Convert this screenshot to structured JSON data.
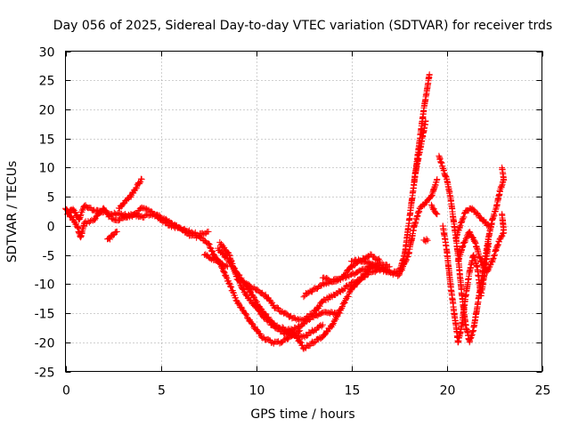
{
  "chart_data": {
    "type": "scatter",
    "title": "Day 056 of 2025, Sidereal Day-to-day VTEC variation (SDTVAR) for receiver trds",
    "xlabel": "GPS time / hours",
    "ylabel": "SDTVAR / TECUs",
    "xlim": [
      0,
      25
    ],
    "ylim": [
      -25,
      30
    ],
    "xticks": [
      0,
      5,
      10,
      15,
      20,
      25
    ],
    "yticks": [
      -25,
      -20,
      -15,
      -10,
      -5,
      0,
      5,
      10,
      15,
      20,
      25,
      30
    ],
    "grid": true,
    "marker": "+",
    "series": [
      {
        "name": "SDTVAR",
        "color": "#ff0000",
        "strands": [
          [
            [
              0,
              3
            ],
            [
              0.3,
              1.5
            ],
            [
              0.6,
              0
            ],
            [
              0.8,
              -2
            ],
            [
              1.0,
              0.5
            ],
            [
              1.5,
              1
            ],
            [
              2.0,
              3
            ],
            [
              2.3,
              1.5
            ],
            [
              2.8,
              1
            ],
            [
              3.2,
              1.5
            ],
            [
              3.6,
              2
            ],
            [
              4.0,
              1.5
            ],
            [
              4.5,
              2
            ],
            [
              5.0,
              1.5
            ],
            [
              5.5,
              0.5
            ],
            [
              6.0,
              -0.5
            ],
            [
              6.5,
              -1.5
            ],
            [
              7.0,
              -2
            ],
            [
              7.5,
              -3
            ],
            [
              7.8,
              -5
            ],
            [
              8.2,
              -7
            ],
            [
              8.6,
              -10
            ],
            [
              9.0,
              -13
            ],
            [
              9.4,
              -15
            ],
            [
              9.8,
              -17
            ],
            [
              10.3,
              -19
            ],
            [
              10.8,
              -20
            ],
            [
              11.3,
              -20
            ],
            [
              11.8,
              -19
            ],
            [
              12.3,
              -18
            ]
          ],
          [
            [
              0.1,
              2
            ],
            [
              0.4,
              3
            ],
            [
              0.7,
              1
            ],
            [
              1.0,
              3.5
            ],
            [
              1.5,
              2.5
            ],
            [
              2.0,
              2.5
            ],
            [
              2.5,
              2
            ],
            [
              3.0,
              2
            ],
            [
              3.5,
              1.5
            ],
            [
              4.0,
              3
            ],
            [
              4.5,
              2.5
            ],
            [
              5.0,
              1
            ],
            [
              5.5,
              0
            ],
            [
              6.0,
              -0.5
            ],
            [
              6.5,
              -1
            ],
            [
              7.0,
              -1.5
            ],
            [
              7.5,
              -1
            ]
          ],
          [
            [
              2.8,
              3
            ],
            [
              3.1,
              4
            ],
            [
              3.4,
              5
            ],
            [
              3.7,
              6.5
            ],
            [
              4.0,
              8
            ]
          ],
          [
            [
              2.2,
              -2.5
            ],
            [
              2.7,
              -1
            ]
          ],
          [
            [
              7.3,
              -5
            ],
            [
              7.6,
              -5.5
            ],
            [
              8.0,
              -6
            ],
            [
              8.5,
              -7
            ]
          ],
          [
            [
              8.0,
              -4
            ],
            [
              8.6,
              -6
            ],
            [
              9.2,
              -9
            ],
            [
              9.8,
              -12
            ],
            [
              10.4,
              -15
            ],
            [
              11.0,
              -17
            ],
            [
              11.6,
              -18
            ],
            [
              12.2,
              -17.5
            ],
            [
              12.8,
              -16
            ],
            [
              13.4,
              -15
            ],
            [
              14.0,
              -15
            ],
            [
              14.4,
              -15
            ]
          ],
          [
            [
              8.1,
              -3
            ],
            [
              8.6,
              -5
            ],
            [
              9.0,
              -9
            ],
            [
              9.5,
              -12
            ],
            [
              10.0,
              -14
            ],
            [
              10.5,
              -16
            ],
            [
              11.0,
              -17.5
            ],
            [
              11.5,
              -18.5
            ],
            [
              12.0,
              -19
            ],
            [
              12.5,
              -19
            ],
            [
              13.0,
              -18
            ],
            [
              13.5,
              -17
            ]
          ],
          [
            [
              9.5,
              -10
            ],
            [
              10.0,
              -11
            ],
            [
              10.5,
              -12
            ],
            [
              11.0,
              -14
            ],
            [
              11.5,
              -15
            ],
            [
              12.0,
              -16
            ],
            [
              12.5,
              -16
            ],
            [
              13.0,
              -15
            ],
            [
              13.5,
              -13
            ],
            [
              14.0,
              -12
            ],
            [
              14.5,
              -11
            ],
            [
              15.0,
              -10
            ],
            [
              15.5,
              -9
            ],
            [
              16.0,
              -8
            ],
            [
              16.5,
              -7.5
            ]
          ],
          [
            [
              11.5,
              -18
            ],
            [
              12.0,
              -18.5
            ],
            [
              12.5,
              -21
            ],
            [
              13.0,
              -20
            ],
            [
              13.5,
              -19
            ],
            [
              14.0,
              -17
            ],
            [
              14.5,
              -14
            ],
            [
              15.0,
              -11
            ],
            [
              15.5,
              -9
            ],
            [
              16.0,
              -7
            ],
            [
              16.5,
              -6.5
            ],
            [
              17.0,
              -7
            ]
          ],
          [
            [
              12.5,
              -12
            ],
            [
              13.0,
              -11
            ],
            [
              13.5,
              -10
            ],
            [
              14.0,
              -9.5
            ],
            [
              14.5,
              -9
            ],
            [
              15.0,
              -8.5
            ],
            [
              15.5,
              -7.5
            ],
            [
              16.0,
              -7
            ],
            [
              16.5,
              -7.5
            ],
            [
              17.0,
              -8
            ],
            [
              17.5,
              -8.5
            ],
            [
              18.0,
              -5
            ],
            [
              18.3,
              0
            ],
            [
              18.6,
              3
            ],
            [
              18.9,
              4
            ],
            [
              19.2,
              5
            ],
            [
              19.5,
              8
            ]
          ],
          [
            [
              13.5,
              -9
            ],
            [
              14.0,
              -9.5
            ],
            [
              14.5,
              -9
            ],
            [
              15.0,
              -7
            ],
            [
              15.5,
              -6
            ],
            [
              16.0,
              -6.5
            ],
            [
              16.5,
              -7
            ],
            [
              17.0,
              -8
            ],
            [
              17.5,
              -8
            ],
            [
              17.8,
              -5
            ],
            [
              18.0,
              0
            ],
            [
              18.2,
              5
            ],
            [
              18.4,
              10
            ],
            [
              18.6,
              15
            ],
            [
              18.8,
              20
            ],
            [
              19.0,
              24
            ],
            [
              19.1,
              26
            ]
          ],
          [
            [
              15.0,
              -6
            ],
            [
              15.5,
              -6
            ],
            [
              16.0,
              -5
            ],
            [
              16.5,
              -6
            ]
          ],
          [
            [
              18.3,
              8
            ],
            [
              18.6,
              13
            ],
            [
              18.9,
              18
            ]
          ],
          [
            [
              18.8,
              -2.5
            ],
            [
              19.0,
              -2.5
            ]
          ],
          [
            [
              19.2,
              3.5
            ],
            [
              19.5,
              2
            ]
          ],
          [
            [
              19.6,
              12
            ],
            [
              19.8,
              10
            ],
            [
              20.0,
              8
            ],
            [
              20.2,
              5
            ],
            [
              20.4,
              0
            ],
            [
              20.6,
              -5
            ],
            [
              20.8,
              -12
            ],
            [
              21.0,
              -17
            ],
            [
              21.2,
              -20
            ],
            [
              21.4,
              -18
            ],
            [
              21.6,
              -14
            ],
            [
              21.8,
              -10
            ],
            [
              22.0,
              -6
            ],
            [
              22.2,
              -2
            ],
            [
              22.4,
              1
            ],
            [
              22.6,
              3
            ],
            [
              22.8,
              6
            ],
            [
              23.0,
              8
            ],
            [
              22.9,
              10
            ]
          ],
          [
            [
              19.8,
              0
            ],
            [
              20.0,
              -4
            ],
            [
              20.2,
              -10
            ],
            [
              20.4,
              -15
            ],
            [
              20.6,
              -20
            ],
            [
              20.8,
              -17
            ],
            [
              21.0,
              -12
            ],
            [
              21.2,
              -8
            ],
            [
              21.4,
              -5
            ],
            [
              21.6,
              -7
            ],
            [
              21.8,
              -12
            ],
            [
              22.0,
              -8
            ],
            [
              22.2,
              -3
            ]
          ],
          [
            [
              20.5,
              -2
            ],
            [
              20.7,
              0
            ],
            [
              21.0,
              2.5
            ],
            [
              21.3,
              3
            ],
            [
              21.6,
              2
            ],
            [
              21.9,
              1
            ],
            [
              22.2,
              0
            ]
          ],
          [
            [
              20.6,
              -6
            ],
            [
              20.9,
              -3
            ],
            [
              21.2,
              -1
            ],
            [
              21.5,
              -3
            ],
            [
              21.8,
              -6
            ],
            [
              22.1,
              -8
            ],
            [
              22.4,
              -6
            ],
            [
              22.7,
              -3
            ],
            [
              23.0,
              -1
            ],
            [
              22.9,
              2
            ]
          ]
        ]
      }
    ]
  }
}
